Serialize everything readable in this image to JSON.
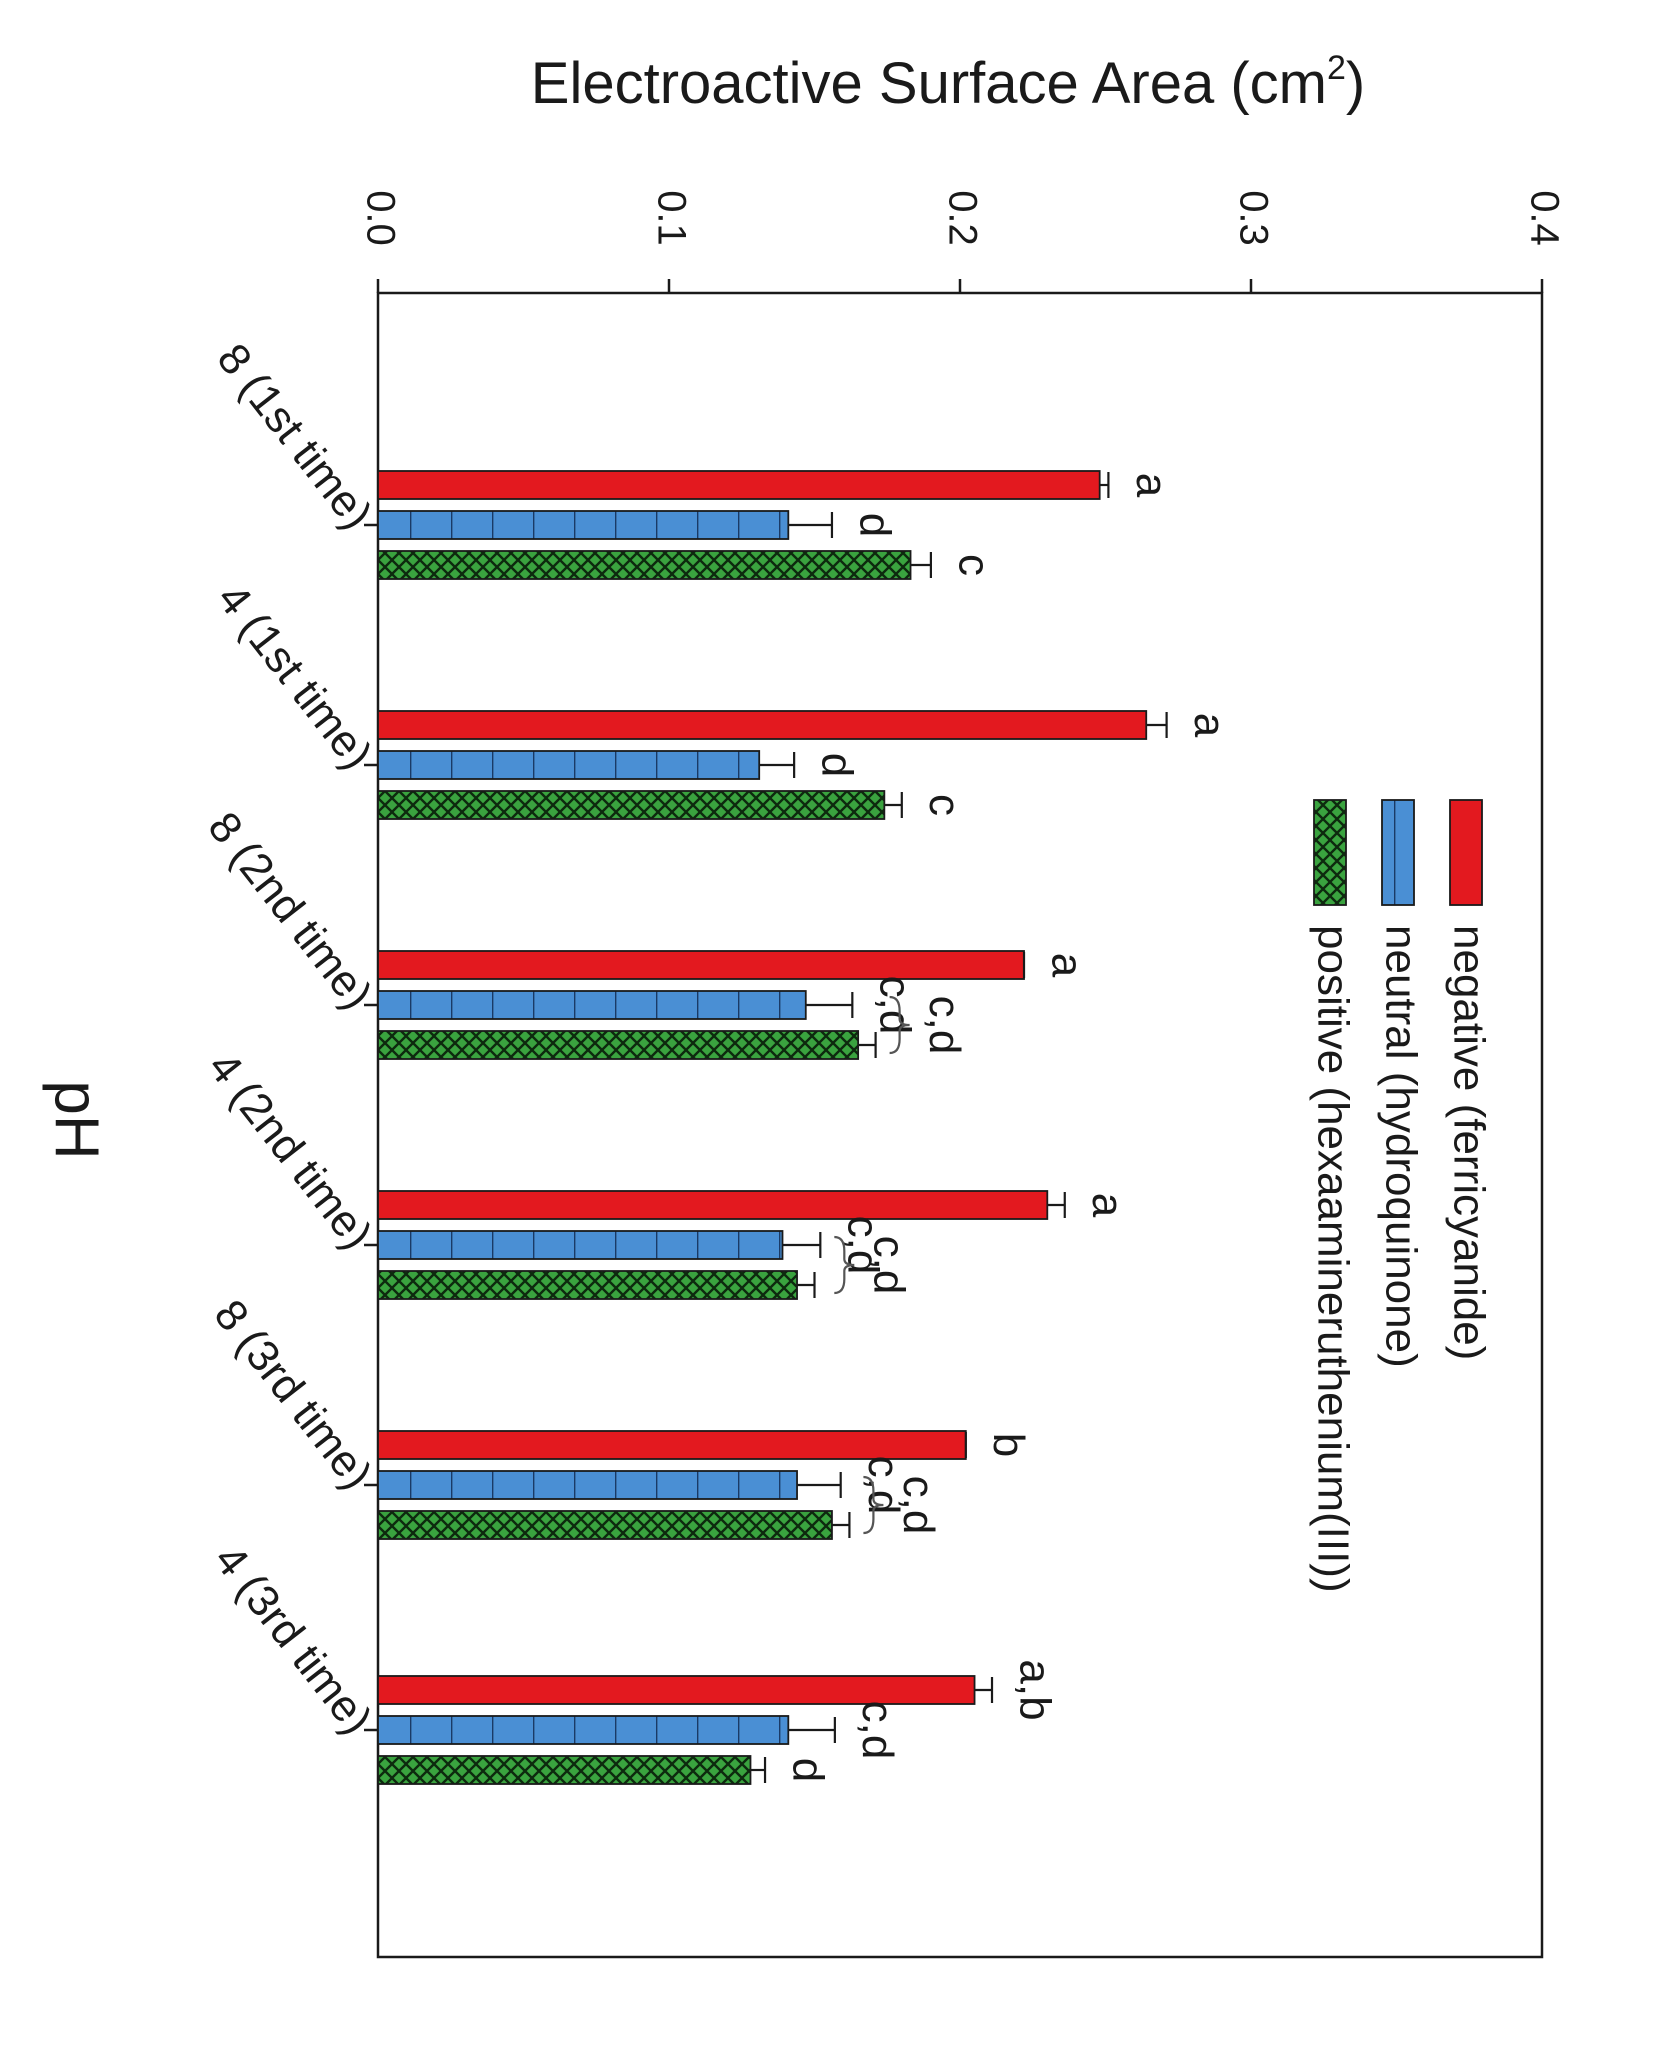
{
  "chart_data": {
    "type": "bar",
    "orientation": "rotated-90-clockwise",
    "title": "",
    "ylabel_main": "Electroactive Surface Area (cm",
    "ylabel_sup": "2",
    "ylabel_close": ")",
    "xlabel": "pH",
    "ylim": [
      0,
      0.4
    ],
    "y_ticks": [
      "0.0",
      "0.1",
      "0.2",
      "0.3",
      "0.4"
    ],
    "y_tick_values": [
      0,
      0.1,
      0.2,
      0.3,
      0.4
    ],
    "categories": [
      "8 (1st time)",
      "4 (1st time)",
      "8 (2nd time)",
      "4 (2nd time)",
      "8 (3rd time)",
      "4 (3rd time)"
    ],
    "series": [
      {
        "name": "negative (ferricyanide)",
        "color": "#e3191f",
        "pattern": "solid",
        "values": [
          0.248,
          0.264,
          0.222,
          0.23,
          0.202,
          0.205
        ],
        "errors": [
          0.003,
          0.007,
          0.0,
          0.006,
          0.0,
          0.006
        ],
        "letters": [
          "a",
          "a",
          "a",
          "a",
          "b",
          "a,b"
        ]
      },
      {
        "name": "neutral (hydroquinone)",
        "color": "#4a8fd4",
        "pattern": "vertical-lines",
        "values": [
          0.141,
          0.131,
          0.147,
          0.139,
          0.144,
          0.141
        ],
        "errors": [
          0.015,
          0.012,
          0.016,
          0.013,
          0.015,
          0.016
        ],
        "letters": [
          "d",
          "d",
          "c,d",
          "c,d",
          "c,d",
          "c,d"
        ]
      },
      {
        "name": "positive (hexaamineruthenium(III))",
        "color": "#3aa33f",
        "pattern": "crosshatch",
        "values": [
          0.183,
          0.174,
          0.165,
          0.144,
          0.156,
          0.128
        ],
        "errors": [
          0.007,
          0.006,
          0.006,
          0.006,
          0.006,
          0.005
        ],
        "letters": [
          "c",
          "c",
          "",
          "",
          "",
          "d"
        ]
      }
    ],
    "grouped_brackets": [
      2,
      3,
      4
    ],
    "legend_position": "top-right (rotated)",
    "grid": false
  }
}
